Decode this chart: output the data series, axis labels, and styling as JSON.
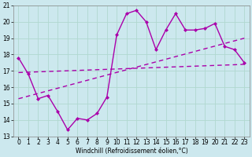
{
  "xlabel": "Windchill (Refroidissement éolien,°C)",
  "bg_color": "#cce8ee",
  "grid_color": "#b0d8d0",
  "line_color": "#aa00aa",
  "xlim": [
    -0.5,
    23.5
  ],
  "ylim": [
    13,
    21
  ],
  "yticks": [
    13,
    14,
    15,
    16,
    17,
    18,
    19,
    20,
    21
  ],
  "xticks": [
    0,
    1,
    2,
    3,
    4,
    5,
    6,
    7,
    8,
    9,
    10,
    11,
    12,
    13,
    14,
    15,
    16,
    17,
    18,
    19,
    20,
    21,
    22,
    23
  ],
  "zigzag_x": [
    0,
    1,
    2,
    3,
    4,
    5,
    6,
    7,
    8,
    9,
    10,
    11,
    12,
    13,
    14,
    15,
    16,
    17,
    18,
    19,
    20,
    21,
    22,
    23
  ],
  "zigzag_y": [
    17.8,
    16.8,
    15.3,
    15.5,
    14.5,
    13.4,
    14.1,
    14.0,
    14.4,
    15.4,
    19.2,
    20.5,
    20.7,
    20.0,
    18.3,
    19.5,
    20.5,
    19.5,
    19.5,
    19.6,
    19.9,
    18.5,
    18.3,
    17.5
  ],
  "trend1_x": [
    0,
    23
  ],
  "trend1_y": [
    16.9,
    17.4
  ],
  "trend2_x": [
    0,
    23
  ],
  "trend2_y": [
    15.3,
    19.0
  ],
  "marker": "D",
  "markersize": 2.5,
  "linewidth": 1.0,
  "tick_fontsize": 5.5,
  "xlabel_fontsize": 5.5
}
